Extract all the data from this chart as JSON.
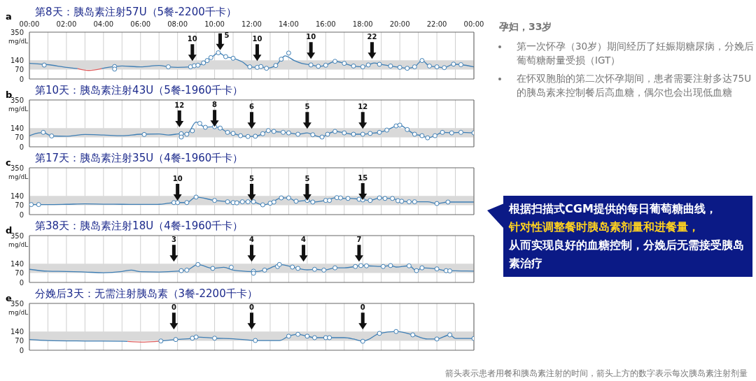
{
  "chart_data": [
    {
      "type": "line",
      "subtitle": "a",
      "title": "第8天：胰岛素注射57U（5餐-2200千卡）",
      "ylabel": "mg/dL",
      "xlim": [
        0,
        24
      ],
      "ylim": [
        0,
        350
      ],
      "yticks": [
        0,
        70,
        140,
        350
      ],
      "grid": "x",
      "xticks": [
        {
          "value": 0,
          "label": "00:00"
        },
        {
          "value": 1,
          "label": null
        },
        {
          "value": 2,
          "label": "02:00"
        },
        {
          "value": 3,
          "label": null
        },
        {
          "value": 4,
          "label": "04:00"
        },
        {
          "value": 5,
          "label": null
        },
        {
          "value": 6,
          "label": "06:00"
        },
        {
          "value": 7,
          "label": null
        },
        {
          "value": 8,
          "label": "08:00"
        },
        {
          "value": 9,
          "label": null
        },
        {
          "value": 10,
          "label": "10:00"
        },
        {
          "value": 11,
          "label": null
        },
        {
          "value": 12,
          "label": "12:00"
        },
        {
          "value": 13,
          "label": null
        },
        {
          "value": 14,
          "label": "14:00"
        },
        {
          "value": 15,
          "label": null
        },
        {
          "value": 16,
          "label": "16:00"
        },
        {
          "value": 17,
          "label": null
        },
        {
          "value": 18,
          "label": "18:00"
        },
        {
          "value": 19,
          "label": null
        },
        {
          "value": 20,
          "label": "20:00"
        },
        {
          "value": 21,
          "label": null
        },
        {
          "value": 22,
          "label": "22:00"
        },
        {
          "value": 23,
          "label": null
        },
        {
          "value": 24,
          "label": "00:00"
        }
      ],
      "bands": [
        {
          "axis": "y",
          "from": 70,
          "to": 140,
          "color": "#d9d9d9"
        }
      ],
      "annotations": [
        {
          "text": "10",
          "x": 8.8,
          "y": 135
        },
        {
          "text": "5",
          "x": 10.3,
          "y": 215
        },
        {
          "text": "10",
          "x": 12.3,
          "y": 135
        },
        {
          "text": "10",
          "x": 15.2,
          "y": 150
        },
        {
          "text": "22",
          "x": 18.5,
          "y": 150
        }
      ],
      "series": [
        {
          "type": "line",
          "marker": "none",
          "color": "#3f7fb5",
          "x": [
            0,
            1,
            2,
            2.6,
            3.2,
            3.9,
            4.6,
            5,
            6,
            7,
            7.5,
            8,
            8.7,
            8.9,
            9.1,
            9.3,
            9.6,
            9.9,
            10.2,
            10.6,
            11,
            11.5,
            11.9,
            12.3,
            12.5,
            12.8,
            13.3,
            13.6,
            13.8,
            14.3,
            14.7,
            15.2,
            15.6,
            16,
            16.5,
            17,
            17.5,
            18,
            18.3,
            18.6,
            19,
            19.5,
            20,
            20.4,
            20.8,
            21.2,
            21.6,
            22,
            22.4,
            22.9,
            23.3,
            24
          ],
          "values": [
            117,
            107,
            87,
            78,
            null,
            78,
            93,
            97,
            91,
            101,
            91,
            87,
            91,
            99,
            103,
            110,
            138,
            169,
            196,
            167,
            155,
            128,
            91,
            87,
            93,
            80,
            101,
            148,
            173,
            138,
            117,
            105,
            95,
            103,
            132,
            117,
            97,
            91,
            105,
            119,
            109,
            97,
            87,
            80,
            91,
            138,
            97,
            91,
            85,
            111,
            107,
            91
          ]
        },
        {
          "type": "line",
          "marker": "none",
          "color": "#e06060",
          "x": [
            2.6,
            3.2,
            3.9
          ],
          "values": [
            78,
            64,
            78
          ]
        },
        {
          "type": "scatter",
          "marker": "circle",
          "color": "#3f7fb5",
          "x": [
            0.8,
            4.6,
            4.6,
            7.5,
            8.7,
            8.9,
            9.1,
            9.4,
            9.6,
            9.8,
            10.2,
            10.6,
            11,
            11.9,
            12.3,
            12.5,
            12.8,
            13.3,
            13.6,
            14,
            15.2,
            15.6,
            16,
            16.5,
            17,
            17.5,
            18,
            18.3,
            18.9,
            19.5,
            20,
            20.4,
            20.8,
            21.2,
            21.6,
            22,
            22.4,
            22.9,
            23.3
          ],
          "values": [
            104,
            93,
            74,
            91,
            91,
            99,
            103,
            120,
            138,
            160,
            196,
            167,
            155,
            91,
            87,
            93,
            80,
            101,
            148,
            194,
            105,
            95,
            103,
            132,
            117,
            97,
            91,
            105,
            110,
            97,
            87,
            80,
            91,
            138,
            97,
            91,
            85,
            111,
            107
          ]
        }
      ]
    },
    {
      "type": "line",
      "subtitle": "b",
      "title": "第10天：胰岛素注射43U（5餐-1960千卡）",
      "ylabel": "mg/dL",
      "xlim": [
        0,
        24
      ],
      "ylim": [
        0,
        350
      ],
      "yticks": [
        0,
        70,
        140,
        350
      ],
      "grid": "x",
      "tick_labels": "y",
      "xticks": [
        0,
        1,
        2,
        3,
        4,
        5,
        6,
        7,
        8,
        9,
        10,
        11,
        12,
        13,
        14,
        15,
        16,
        17,
        18,
        19,
        20,
        21,
        22,
        23,
        24
      ],
      "bands": [
        {
          "axis": "y",
          "from": 70,
          "to": 140,
          "color": "#d9d9d9"
        }
      ],
      "annotations": [
        {
          "text": "12",
          "x": 8.1,
          "y": 146
        },
        {
          "text": "8",
          "x": 10,
          "y": 150
        },
        {
          "text": "6",
          "x": 12,
          "y": 135
        },
        {
          "text": "5",
          "x": 15,
          "y": 135
        },
        {
          "text": "12",
          "x": 18,
          "y": 135
        }
      ],
      "series": [
        {
          "type": "line",
          "marker": "none",
          "color": "#3f7fb5",
          "x": [
            0,
            0.5,
            0.75,
            1.2,
            2,
            3,
            4,
            5,
            6,
            7,
            7.5,
            7.9,
            8.2,
            8.5,
            9,
            9.5,
            10,
            10.3,
            10.7,
            11,
            11.4,
            11.8,
            12.2,
            12.6,
            12.9,
            13.2,
            13.7,
            14,
            14.5,
            15,
            15.3,
            15.8,
            16.1,
            16.5,
            17,
            17.5,
            18,
            18.4,
            18.9,
            19.3,
            19.8,
            20,
            20.4,
            20.8,
            21.2,
            21.5,
            21.9,
            22.3,
            22.8,
            23.3,
            24
          ],
          "values": [
            83,
            104,
            106,
            81,
            79,
            92,
            88,
            83,
            94,
            96,
            88,
            94,
            98,
            94,
            185,
            146,
            150,
            140,
            108,
            100,
            83,
            77,
            79,
            98,
            121,
            115,
            108,
            104,
            94,
            104,
            90,
            73,
            94,
            115,
            104,
            94,
            94,
            100,
            108,
            125,
            156,
            162,
            129,
            94,
            83,
            67,
            83,
            108,
            104,
            108,
            104
          ]
        },
        {
          "type": "scatter",
          "marker": "circle",
          "color": "#3f7fb5",
          "x": [
            0.75,
            1.2,
            6.2,
            8.2,
            8.2,
            8.5,
            8.8,
            9.2,
            9.5,
            10,
            10.3,
            10.7,
            11,
            11.4,
            11.8,
            12.2,
            12.6,
            12.9,
            13.2,
            13.7,
            14,
            14.5,
            15.3,
            15.8,
            16.1,
            16.5,
            17,
            17.5,
            18,
            18.4,
            18.9,
            19.3,
            19.8,
            20,
            20.4,
            20.8,
            21.2,
            21.5,
            21.9,
            22.3,
            22.8,
            23.3,
            24
          ],
          "values": [
            108,
            81,
            92,
            98,
            73,
            94,
            120,
            175,
            146,
            150,
            140,
            108,
            100,
            83,
            77,
            79,
            98,
            121,
            115,
            108,
            104,
            94,
            90,
            73,
            94,
            115,
            104,
            94,
            94,
            100,
            108,
            125,
            156,
            162,
            129,
            94,
            83,
            67,
            83,
            108,
            104,
            108,
            104
          ]
        }
      ]
    },
    {
      "type": "line",
      "subtitle": "c",
      "title": "第17天：胰岛素注射35U（4餐-1960千卡）",
      "ylabel": "mg/dL",
      "xlim": [
        0,
        24
      ],
      "ylim": [
        0,
        350
      ],
      "yticks": [
        0,
        70,
        140,
        350
      ],
      "grid": "x",
      "tick_labels": "y",
      "xticks": [
        0,
        1,
        2,
        3,
        4,
        5,
        6,
        7,
        8,
        9,
        10,
        11,
        12,
        13,
        14,
        15,
        16,
        17,
        18,
        19,
        20,
        21,
        22,
        23,
        24
      ],
      "bands": [
        {
          "axis": "y",
          "from": 70,
          "to": 140,
          "color": "#d9d9d9"
        }
      ],
      "annotations": [
        {
          "text": "10",
          "x": 8,
          "y": 105
        },
        {
          "text": "5",
          "x": 12,
          "y": 105
        },
        {
          "text": "5",
          "x": 15,
          "y": 105
        },
        {
          "text": "15",
          "x": 18,
          "y": 110
        }
      ],
      "series": [
        {
          "type": "line",
          "marker": "none",
          "color": "#3f7fb5",
          "x": [
            0,
            1,
            2,
            3,
            4,
            5,
            6,
            7,
            7.5,
            7.8,
            8.5,
            9,
            10,
            10.7,
            11,
            11.5,
            12,
            12.6,
            13,
            13.6,
            14,
            14.4,
            15,
            15.3,
            16,
            16.6,
            17,
            17.4,
            17.8,
            18.4,
            18.9,
            19.5,
            20,
            20.5,
            21,
            21.5,
            22,
            22.6,
            24
          ],
          "values": [
            75,
            75,
            77,
            80,
            78,
            77,
            76,
            77,
            85,
            90,
            90,
            131,
            106,
            96,
            90,
            96,
            98,
            73,
            85,
            125,
            125,
            100,
            106,
            94,
            106,
            127,
            121,
            121,
            115,
            106,
            125,
            121,
            106,
            96,
            96,
            96,
            83,
            94,
            94
          ]
        },
        {
          "type": "scatter",
          "marker": "circle",
          "color": "#3f7fb5",
          "x": [
            0.1,
            0.5,
            7.8,
            8,
            8.5,
            9,
            10,
            10.7,
            11,
            11.2,
            11.5,
            11.8,
            12.1,
            12.6,
            13,
            13.2,
            13.6,
            14,
            14.4,
            15,
            15.3,
            16,
            16.2,
            16.6,
            16.8,
            17.2,
            17.8,
            18,
            18.4,
            18.9,
            19.2,
            19.6,
            19.9,
            20.1,
            20.5,
            20.8,
            22,
            22.6
          ],
          "values": [
            75,
            75,
            90,
            90,
            90,
            131,
            106,
            96,
            90,
            88,
            96,
            96,
            96,
            73,
            85,
            94,
            125,
            125,
            100,
            106,
            94,
            106,
            106,
            127,
            125,
            121,
            115,
            110,
            106,
            125,
            121,
            121,
            104,
            100,
            96,
            96,
            83,
            94
          ]
        }
      ]
    },
    {
      "type": "line",
      "subtitle": "d",
      "title": "第38天：胰岛素注射18U（4餐-1960千卡）",
      "ylabel": "mg/dL",
      "xlim": [
        0,
        24
      ],
      "ylim": [
        0,
        350
      ],
      "yticks": [
        0,
        70,
        140,
        350
      ],
      "grid": "x",
      "tick_labels": "y",
      "xticks": [
        0,
        1,
        2,
        3,
        4,
        5,
        6,
        7,
        8,
        9,
        10,
        11,
        12,
        13,
        14,
        15,
        16,
        17,
        18,
        19,
        20,
        21,
        22,
        23,
        24
      ],
      "bands": [
        {
          "axis": "y",
          "from": 70,
          "to": 140,
          "color": "#d9d9d9"
        }
      ],
      "annotations": [
        {
          "text": "3",
          "x": 7.8,
          "y": 155
        },
        {
          "text": "4",
          "x": 12,
          "y": 155
        },
        {
          "text": "4",
          "x": 14.8,
          "y": 155
        },
        {
          "text": "7",
          "x": 17.8,
          "y": 155
        }
      ],
      "series": [
        {
          "type": "line",
          "marker": "none",
          "color": "#3f7fb5",
          "x": [
            0,
            1,
            2,
            3,
            4,
            5,
            5.5,
            6,
            7,
            8,
            8.2,
            8.5,
            9.1,
            9.9,
            10.5,
            11,
            11.8,
            12.1,
            12.7,
            13.2,
            13.5,
            14.2,
            14.5,
            15,
            15.5,
            15.9,
            16.5,
            17,
            17.6,
            17.9,
            18.3,
            19,
            19.5,
            19.8,
            20.5,
            20.9,
            21.2,
            22,
            22.5,
            23.3,
            24
          ],
          "values": [
            98,
            84,
            82,
            78,
            73,
            82,
            92,
            80,
            78,
            84,
            88,
            92,
            134,
            105,
            113,
            92,
            82,
            80,
            92,
            119,
            134,
            115,
            105,
            94,
            98,
            92,
            109,
            109,
            119,
            126,
            124,
            119,
            126,
            115,
            124,
            88,
            109,
            101,
            88,
            86,
            84
          ]
        },
        {
          "type": "scatter",
          "marker": "circle",
          "color": "#3f7fb5",
          "x": [
            8.2,
            8.5,
            9.1,
            9.9,
            10.9,
            12.1,
            12.1,
            12.7,
            13.4,
            13.5,
            14.2,
            14.5,
            15.4,
            15.9,
            16.5,
            17.6,
            17.9,
            18.2,
            19.1,
            19.5,
            20.5,
            20.9,
            21.2,
            22,
            22.5,
            22.7
          ],
          "values": [
            88,
            92,
            134,
            105,
            113,
            84,
            69,
            92,
            119,
            134,
            115,
            105,
            98,
            92,
            109,
            119,
            126,
            124,
            119,
            126,
            124,
            88,
            109,
            101,
            88,
            86
          ]
        }
      ]
    },
    {
      "type": "line",
      "subtitle": "e",
      "title": "分娩后3天：无需注射胰岛素（3餐-2200千卡）",
      "ylabel": "mg/dL",
      "xlim": [
        0,
        24
      ],
      "ylim": [
        0,
        350
      ],
      "yticks": [
        0,
        70,
        140,
        350
      ],
      "grid": "x",
      "tick_labels": "y",
      "xticks": [
        0,
        1,
        2,
        3,
        4,
        5,
        6,
        7,
        8,
        9,
        10,
        11,
        12,
        13,
        14,
        15,
        16,
        17,
        18,
        19,
        20,
        21,
        22,
        23,
        24
      ],
      "bands": [
        {
          "axis": "y",
          "from": 70,
          "to": 140,
          "color": "#d9d9d9"
        }
      ],
      "annotations": [
        {
          "text": "0",
          "x": 7.8,
          "y": 155
        },
        {
          "text": "0",
          "x": 12,
          "y": 155
        },
        {
          "text": "0",
          "x": 18,
          "y": 155
        }
      ],
      "series": [
        {
          "type": "line",
          "marker": "none",
          "color": "#3f7fb5",
          "x": [
            0,
            1,
            3,
            5,
            5.3,
            6.2,
            7.0,
            7.1,
            7.9,
            8.8,
            9,
            10,
            11,
            12.2,
            13,
            13.5,
            14,
            14.5,
            15,
            15.4,
            16,
            16.5,
            17,
            17.5,
            18,
            18.3,
            18.9,
            19.8,
            20.7,
            21.5,
            22,
            22.7,
            23,
            24
          ],
          "values": [
            80,
            73,
            69,
            67,
            66,
            null,
            67,
            69,
            80,
            90,
            99,
            90,
            86,
            73,
            73,
            73,
            105,
            119,
            105,
            94,
            94,
            94,
            94,
            84,
            67,
            80,
            126,
            140,
            115,
            84,
            84,
            115,
            88,
            88
          ]
        },
        {
          "type": "line",
          "marker": "none",
          "color": "#e06060",
          "x": [
            5.3,
            6.2,
            7.0
          ],
          "values": [
            66,
            61,
            67
          ]
        },
        {
          "type": "scatter",
          "marker": "circle",
          "color": "#3f7fb5",
          "x": [
            7.1,
            7.9,
            8.8,
            9,
            10,
            12.2,
            14,
            14.5,
            15,
            15.4,
            16,
            16.2,
            18,
            18.9,
            19.8,
            20.7,
            22,
            22.7,
            24
          ],
          "values": [
            69,
            80,
            90,
            99,
            90,
            73,
            105,
            119,
            105,
            94,
            94,
            94,
            67,
            126,
            140,
            115,
            84,
            115,
            88
          ]
        }
      ]
    },
    {
      "type": "other",
      "title": "孕妇，33岁",
      "annotations": [
        "第一次怀孕（30岁）期间经历了妊娠期糖尿病，分娩后葡萄糖耐量受损（IGT）",
        "在怀双胞胎的第二次怀孕期间，患者需要注射多达75U的胰岛素来控制餐后高血糖，偶尔也会出现低血糖",
        "根据扫描式CGM提供的每日葡萄糖曲线，",
        "针对性调整餐时胰岛素剂量和进餐量，",
        "从而实现良好的血糖控制，分娩后无需接受胰岛素治疗",
        "箭头表示患者用餐和胰岛素注射的时间，箭头上方的数字表示每次胰岛素注射剂量"
      ]
    }
  ]
}
